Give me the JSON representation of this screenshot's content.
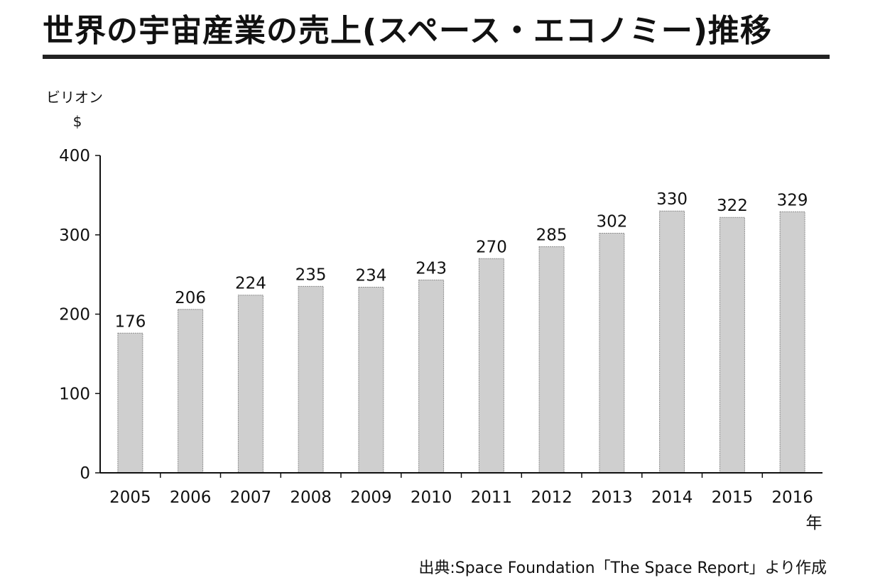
{
  "title": "世界の宇宙産業の売上(スペース・エコノミー)推移",
  "source": "出典:Space Foundation「The Space Report」より作成",
  "colors": {
    "bar_fill": "#cfcfcf",
    "bar_stroke": "#8a8a8a",
    "axis": "#111111",
    "title_rule": "#222222"
  },
  "chart_data": {
    "type": "bar",
    "title": "世界の宇宙産業の売上(スペース・エコノミー)推移",
    "ylabel": "ビリオン $",
    "y_unit_line1": "ビリオン",
    "y_unit_line2": "$",
    "xlabel": "年",
    "ylim": [
      0,
      400
    ],
    "yticks": [
      0,
      100,
      200,
      300,
      400
    ],
    "grid": false,
    "legend": "none",
    "data_labels": true,
    "categories": [
      "2005",
      "2006",
      "2007",
      "2008",
      "2009",
      "2010",
      "2011",
      "2012",
      "2013",
      "2014",
      "2015",
      "2016"
    ],
    "values": [
      176,
      206,
      224,
      235,
      234,
      243,
      270,
      285,
      302,
      330,
      322,
      329
    ]
  }
}
